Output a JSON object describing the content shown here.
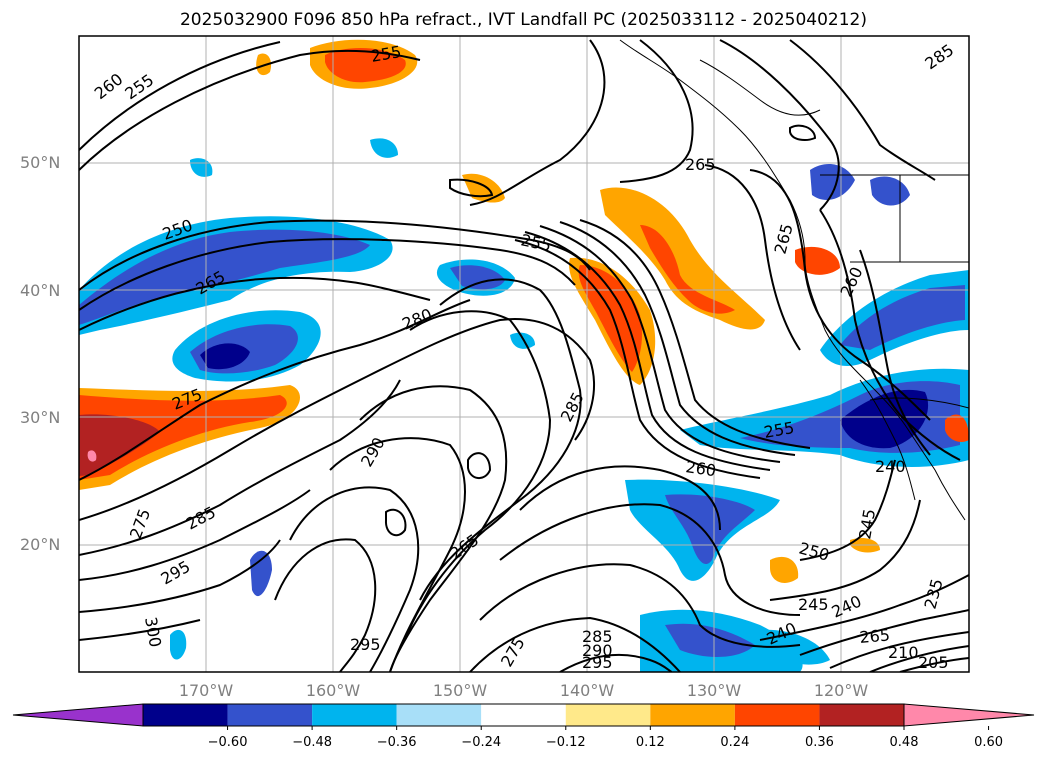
{
  "title": "2025032900 F096 850 hPa refract., IVT Landfall PC (2025033112 - 2025040212)",
  "map": {
    "latitude_labels": [
      "50°N",
      "40°N",
      "30°N",
      "20°N"
    ],
    "longitude_labels": [
      "170°W",
      "160°W",
      "150°W",
      "140°W",
      "130°W",
      "120°W"
    ],
    "extent": {
      "lon_min": -180,
      "lon_max": -110,
      "lat_min": 10,
      "lat_max": 60
    },
    "gridlines": true,
    "coastlines": true
  },
  "contours": {
    "field": "850 hPa refractivity",
    "interval": 5,
    "labels": [
      "260",
      "255",
      "255",
      "265",
      "250",
      "265",
      "280",
      "255",
      "265",
      "260",
      "275",
      "285",
      "290",
      "275",
      "285",
      "295",
      "300",
      "295",
      "265",
      "285",
      "290",
      "295",
      "275",
      "260",
      "255",
      "240",
      "250",
      "245",
      "240",
      "240",
      "235",
      "245",
      "265",
      "205",
      "210",
      "285"
    ]
  },
  "colorbar": {
    "field": "IVT Landfall PC",
    "tick_labels": [
      "−0.60",
      "−0.48",
      "−0.36",
      "−0.24",
      "−0.12",
      "0.12",
      "0.24",
      "0.36",
      "0.48",
      "0.60"
    ],
    "colors": [
      "#9932cc",
      "#00008b",
      "#3452cc",
      "#00b4ee",
      "#a8dff8",
      "#ffffff",
      "#ffe98a",
      "#ffa500",
      "#ff4500",
      "#b22222",
      "#ff88aa"
    ],
    "extend": "both"
  }
}
